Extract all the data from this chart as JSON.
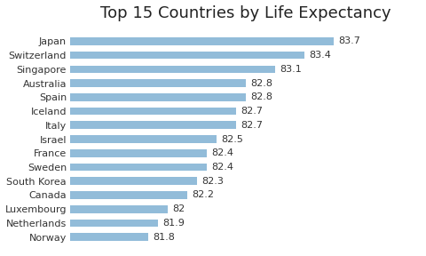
{
  "title": "Top 15 Countries by Life Expectancy",
  "countries": [
    "Norway",
    "Netherlands",
    "Luxembourg",
    "Canada",
    "South Korea",
    "Sweden",
    "France",
    "Israel",
    "Italy",
    "Iceland",
    "Spain",
    "Australia",
    "Singapore",
    "Switzerland",
    "Japan"
  ],
  "values": [
    81.8,
    81.9,
    82.0,
    82.2,
    82.3,
    82.4,
    82.4,
    82.5,
    82.7,
    82.7,
    82.8,
    82.8,
    83.1,
    83.4,
    83.7
  ],
  "bar_color": "#92bcd9",
  "background_color": "#ffffff",
  "title_fontsize": 13,
  "label_fontsize": 8,
  "value_fontsize": 8,
  "xlim_min": 81.0,
  "xlim_max": 84.6,
  "bar_height": 0.55
}
